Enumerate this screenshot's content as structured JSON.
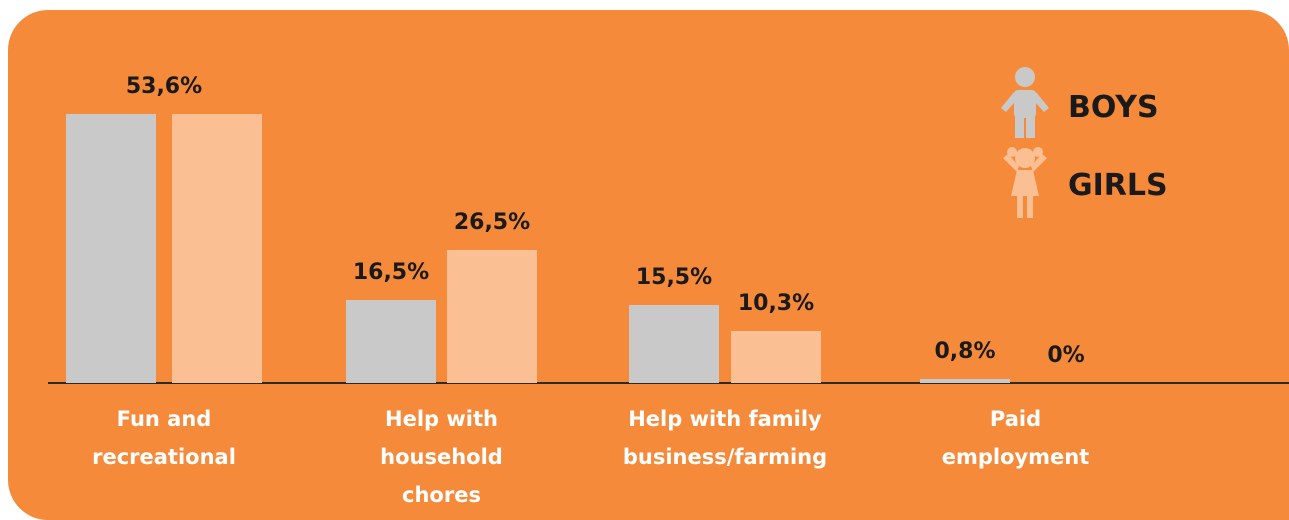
{
  "chart_data": {
    "type": "bar",
    "categories": [
      "Fun and recreational",
      "Help with household chores",
      "Help with family business/farming",
      "Paid employment"
    ],
    "series": [
      {
        "name": "BOYS",
        "color": "#c9c9c9",
        "values": [
          53.6,
          16.5,
          15.5,
          0.8
        ],
        "value_labels": [
          "53,6%",
          "16,5%",
          "15,5%",
          "0,8%"
        ]
      },
      {
        "name": "GIRLS",
        "color": "#fbbf94",
        "values": [
          53.6,
          26.5,
          10.3,
          0
        ],
        "value_labels": [
          null,
          "26,5%",
          "10,3%",
          "0%"
        ]
      }
    ],
    "ylim": [
      0,
      55
    ],
    "background": "#f58a3b",
    "grid": false
  }
}
